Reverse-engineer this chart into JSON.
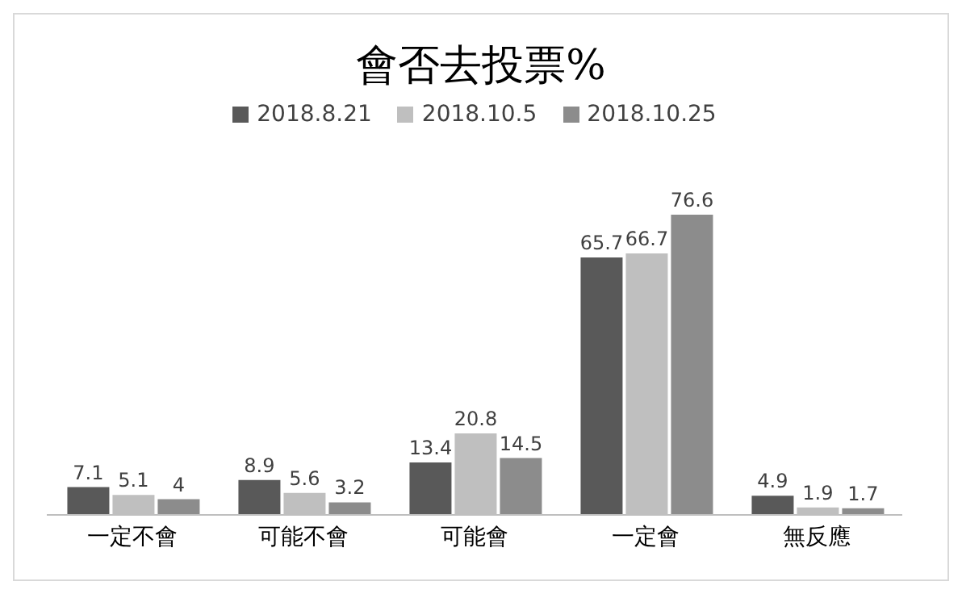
{
  "chart_data": {
    "type": "bar",
    "title": "會否去投票%",
    "categories": [
      "一定不會",
      "可能不會",
      "可能會",
      "一定會",
      "無反應"
    ],
    "series": [
      {
        "name": "2018.8.21",
        "color": "#595959",
        "values": [
          7.1,
          8.9,
          13.4,
          65.7,
          4.9
        ]
      },
      {
        "name": "2018.10.5",
        "color": "#bfbfbf",
        "values": [
          5.1,
          5.6,
          20.8,
          66.7,
          1.9
        ]
      },
      {
        "name": "2018.10.25",
        "color": "#8c8c8c",
        "values": [
          4,
          3.2,
          14.5,
          76.6,
          1.7
        ]
      }
    ],
    "data_labels": true,
    "legend": "top",
    "grid": false,
    "tick_labels": "x"
  }
}
